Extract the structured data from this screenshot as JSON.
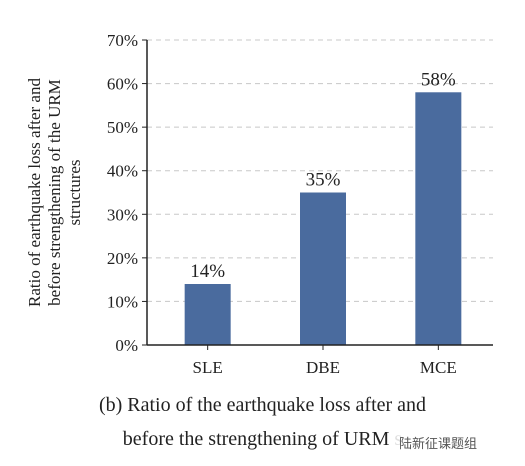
{
  "chart_data": {
    "type": "bar",
    "categories": [
      "SLE",
      "DBE",
      "MCE"
    ],
    "values": [
      14,
      35,
      58
    ],
    "data_labels": [
      "14%",
      "35%",
      "58%"
    ],
    "ylabel_lines": [
      "Ratio of earthquake loss after and",
      "before strengthening of the URM",
      "structures"
    ],
    "xlabel": "",
    "ylim": [
      0,
      70
    ],
    "yticks": [
      0,
      10,
      20,
      30,
      40,
      50,
      60,
      70
    ],
    "ytick_labels": [
      "0%",
      "10%",
      "20%",
      "30%",
      "40%",
      "50%",
      "60%",
      "70%"
    ],
    "grid": "horizontal dashed",
    "bar_color": "#4a6b9e"
  },
  "caption": {
    "line1": "(b)  Ratio of the earthquake loss after and",
    "line2": "before the strengthening of URM s"
  },
  "watermark": "陆新征课题组"
}
